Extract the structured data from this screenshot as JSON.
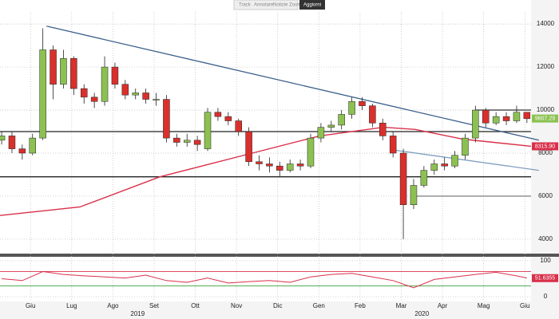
{
  "toolbar": {
    "items": [
      "Track",
      "Annotare",
      "Notizie",
      "Zoom"
    ],
    "action": "Aggiorni"
  },
  "chart_data": [
    {
      "type": "candlestick",
      "x": [
        -0.7,
        -0.45,
        -0.2,
        0.05,
        0.3,
        0.55,
        0.8,
        1.05,
        1.3,
        1.55,
        1.8,
        2.05,
        2.3,
        2.55,
        2.8,
        3.05,
        3.3,
        3.55,
        3.8,
        4.05,
        4.3,
        4.55,
        4.8,
        5.05,
        5.3,
        5.55,
        5.8,
        6.05,
        6.3,
        6.55,
        6.8,
        7.05,
        7.3,
        7.55,
        7.8,
        8.05,
        8.3,
        8.55,
        8.8,
        9.05,
        9.3,
        9.55,
        9.8,
        10.05,
        10.3,
        10.55,
        10.8,
        11.05,
        11.3,
        11.55,
        11.8,
        12.05
      ],
      "open": [
        8600,
        8800,
        8200,
        8000,
        8700,
        12800,
        11200,
        12400,
        11000,
        10600,
        10400,
        12000,
        11200,
        10700,
        10800,
        10500,
        10500,
        8700,
        8500,
        8600,
        8200,
        9900,
        9700,
        9500,
        9000,
        7600,
        7500,
        7400,
        7200,
        7500,
        7400,
        8700,
        9200,
        9300,
        9800,
        10400,
        10200,
        9400,
        8800,
        8000,
        5600,
        6500,
        7200,
        7500,
        7400,
        7900,
        8700,
        10000,
        9400,
        9700,
        9500,
        9900
      ],
      "high": [
        9000,
        9000,
        8400,
        8900,
        13800,
        13000,
        12800,
        12500,
        11200,
        10800,
        12500,
        12200,
        11400,
        11000,
        11000,
        10800,
        10700,
        8900,
        8900,
        8800,
        10100,
        10100,
        9900,
        9600,
        9200,
        7900,
        7800,
        7600,
        7700,
        7700,
        8900,
        9400,
        9500,
        10000,
        10600,
        10600,
        10300,
        9600,
        9000,
        8200,
        6800,
        7400,
        7700,
        7800,
        8100,
        8900,
        10200,
        10100,
        9900,
        9900,
        10200,
        9900
      ],
      "low": [
        8400,
        8000,
        7700,
        7900,
        8600,
        10500,
        11000,
        10700,
        10300,
        10100,
        10200,
        11000,
        10500,
        10500,
        10300,
        10200,
        8500,
        8300,
        8300,
        8100,
        8100,
        9500,
        9300,
        8800,
        7400,
        7200,
        7100,
        6900,
        7100,
        7200,
        7300,
        8500,
        9000,
        9100,
        9600,
        10000,
        9200,
        8600,
        7800,
        4000,
        5400,
        6400,
        7000,
        7200,
        7300,
        7700,
        8500,
        9200,
        9300,
        9300,
        9400,
        9400
      ],
      "close": [
        8800,
        8200,
        8000,
        8700,
        12800,
        11200,
        12400,
        11000,
        10600,
        10400,
        12000,
        11200,
        10700,
        10800,
        10500,
        10500,
        8700,
        8500,
        8600,
        8400,
        9900,
        9700,
        9500,
        9000,
        7600,
        7500,
        7400,
        7200,
        7500,
        7400,
        8700,
        9200,
        9300,
        9800,
        10400,
        10200,
        9400,
        8800,
        8000,
        5600,
        6500,
        7200,
        7500,
        7400,
        7900,
        8700,
        10000,
        9400,
        9700,
        9500,
        9900,
        9600
      ],
      "up_color": "#8cc152",
      "down_color": "#d9302c",
      "last_value": 9607.29,
      "last_color": "#8cc152",
      "ma": {
        "x": [
          -0.74,
          1.2,
          3.14,
          5.08,
          7.02,
          8.57,
          9.34,
          10.5,
          12.15
        ],
        "values": [
          5100,
          5500,
          6900,
          7850,
          8800,
          9200,
          9100,
          8650,
          8320
        ],
        "color": "#d9304a",
        "last_value": {
          "value": 8315.9,
          "label": "8315.90"
        }
      },
      "trendlines": [
        {
          "x": [
            0.39,
            12.34
          ],
          "values": [
            13900,
            8600
          ],
          "color": "#3a5f8a"
        },
        {
          "x": [
            8.8,
            12.34
          ],
          "values": [
            8150,
            7200
          ],
          "color": "#7f9fc0"
        }
      ],
      "levels": [
        {
          "value": 9000,
          "color": "#222",
          "xrange": [
            -0.74,
            12.15
          ]
        },
        {
          "value": 6900,
          "color": "#222",
          "xrange": [
            -0.74,
            12.15
          ]
        },
        {
          "value": 10000,
          "color": "#333",
          "xrange": [
            10.8,
            12.15
          ]
        },
        {
          "value": 6000,
          "color": "#888",
          "xrange": [
            9.3,
            12.15
          ]
        }
      ],
      "xlim": [
        -0.74,
        12.15
      ],
      "ylim": [
        3330,
        14560
      ],
      "yticks": [
        4000,
        6000,
        8000,
        10000,
        12000,
        14000
      ],
      "xticks": [
        {
          "value": 0,
          "label": "Giu"
        },
        {
          "value": 1,
          "label": "Lug"
        },
        {
          "value": 2,
          "label": "Ago"
        },
        {
          "value": 3,
          "label": "Set"
        },
        {
          "value": 4,
          "label": "Ott"
        },
        {
          "value": 5,
          "label": "Nov"
        },
        {
          "value": 6,
          "label": "Dic"
        },
        {
          "value": 7,
          "label": "Gen"
        },
        {
          "value": 8,
          "label": "Feb"
        },
        {
          "value": 9,
          "label": "Mar"
        },
        {
          "value": 10,
          "label": "Apr"
        },
        {
          "value": 11,
          "label": "Mag"
        },
        {
          "value": 12,
          "label": "Giu"
        }
      ],
      "years": [
        {
          "value": 2.6,
          "label": "2019"
        },
        {
          "value": 9.5,
          "label": "2020"
        }
      ],
      "grid": true
    },
    {
      "type": "line",
      "x": [
        -0.7,
        -0.2,
        0.3,
        0.8,
        1.3,
        1.8,
        2.3,
        2.8,
        3.3,
        3.8,
        4.3,
        4.8,
        5.3,
        5.8,
        6.3,
        6.8,
        7.3,
        7.8,
        8.3,
        8.8,
        9.3,
        9.8,
        10.3,
        10.8,
        11.3,
        11.8,
        12.05
      ],
      "values": [
        50,
        45,
        70,
        62,
        58,
        55,
        52,
        60,
        45,
        40,
        52,
        38,
        42,
        45,
        40,
        55,
        62,
        65,
        55,
        45,
        25,
        48,
        55,
        62,
        68,
        58,
        52
      ],
      "color": "#d9304a",
      "last_value": {
        "value": 51.6355,
        "label": "51.6355"
      },
      "bands": [
        {
          "value": 70,
          "color": "#d9304a"
        },
        {
          "value": 30,
          "color": "#3aa03a"
        }
      ],
      "xlim": [
        -0.74,
        12.15
      ],
      "ylim": [
        -11,
        111
      ],
      "yticks": [
        0,
        100
      ],
      "grid": true
    }
  ]
}
